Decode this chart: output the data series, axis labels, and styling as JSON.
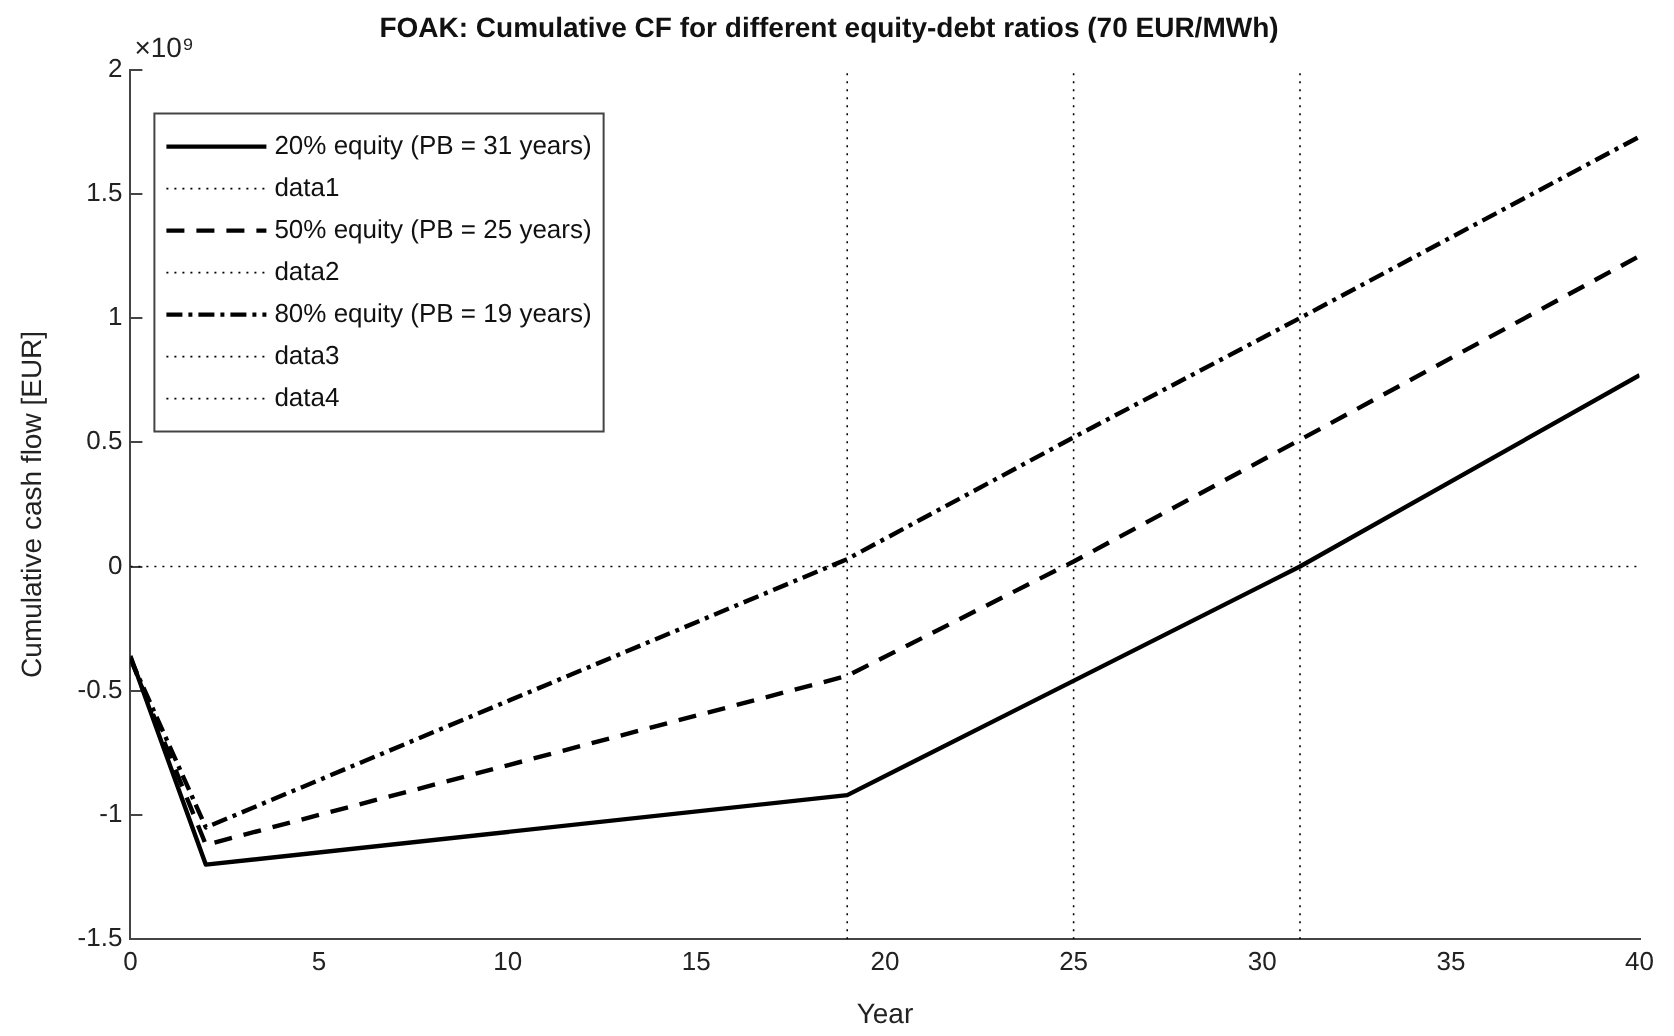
{
  "chart_data": {
    "type": "line",
    "title": "FOAK: Cumulative CF for different equity-debt ratios (70 EUR/MWh)",
    "xlabel": "Year",
    "ylabel": "Cumulative cash flow [EUR]",
    "annotations": [
      "×10⁹"
    ],
    "xlim": [
      0,
      40
    ],
    "xticks": [
      0,
      5,
      10,
      15,
      20,
      25,
      30,
      35,
      40
    ],
    "ylim": [
      -1.5,
      2
    ],
    "yticks": [
      -1.5,
      -1,
      -0.5,
      0,
      0.5,
      1,
      1.5,
      2
    ],
    "grid": false,
    "legend": "top left",
    "marker": "none",
    "series": [
      {
        "name": "20% equity (PB = 31 years)",
        "color": "#000000",
        "line_style": "solid",
        "x": [
          0,
          2,
          19,
          31,
          40
        ],
        "values": [
          -0.36,
          -1.2,
          -0.92,
          0,
          0.77
        ]
      },
      {
        "name": "data1",
        "color": "#000000",
        "line_style": "dotted",
        "x": [
          31,
          31
        ],
        "values": [
          -1.5,
          2
        ]
      },
      {
        "name": "50% equity (PB = 25 years)",
        "color": "#000000",
        "line_style": "dashed",
        "x": [
          0,
          2,
          19,
          25,
          31,
          40
        ],
        "values": [
          -0.37,
          -1.12,
          -0.44,
          0.02,
          0.51,
          1.25
        ]
      },
      {
        "name": "data2",
        "color": "#000000",
        "line_style": "dotted",
        "x": [
          25,
          25
        ],
        "values": [
          -1.5,
          2
        ]
      },
      {
        "name": "80% equity (PB = 19 years)",
        "color": "#000000",
        "line_style": "dashdot",
        "x": [
          0,
          2,
          19,
          25,
          31,
          40
        ],
        "values": [
          -0.37,
          -1.05,
          0.03,
          0.52,
          1.0,
          1.73
        ]
      },
      {
        "name": "data3",
        "color": "#000000",
        "line_style": "dotted",
        "x": [
          19,
          19
        ],
        "values": [
          -1.5,
          2
        ]
      },
      {
        "name": "data4",
        "color": "#000000",
        "line_style": "dotted",
        "x": [
          0,
          40
        ],
        "values": [
          0,
          0
        ]
      }
    ]
  }
}
